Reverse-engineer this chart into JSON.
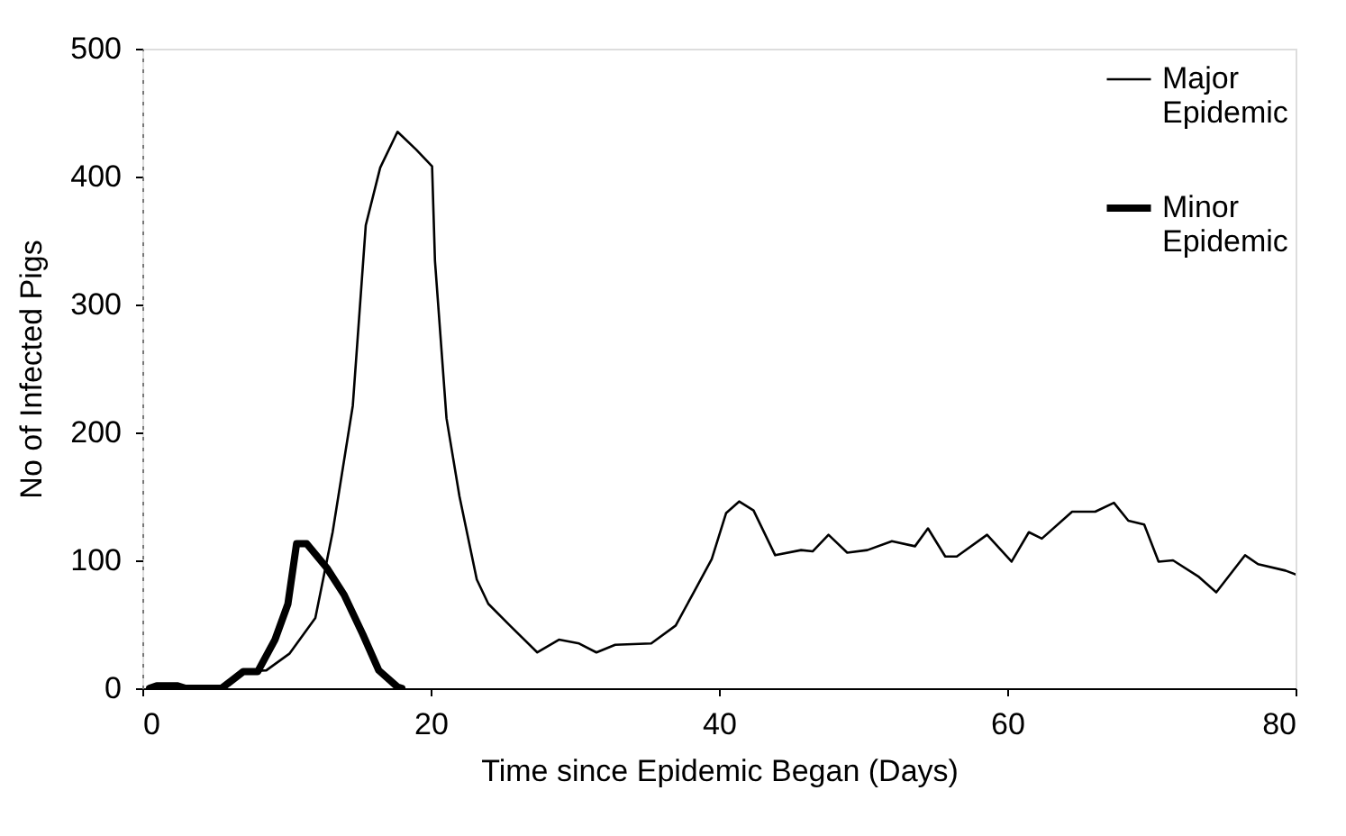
{
  "chart_data": {
    "type": "line",
    "xlabel": "Time since Epidemic Began (Days)",
    "ylabel": "No of Infected Pigs",
    "xlim": [
      0,
      80
    ],
    "xticks": [
      0,
      20,
      40,
      60,
      80
    ],
    "ylim": [
      0,
      500
    ],
    "yticks": [
      0,
      100,
      200,
      300,
      400,
      500
    ],
    "grid": false,
    "legend": "top right",
    "marker": "none",
    "line_style": "solid",
    "series": [
      {
        "name": "Major Epidemic",
        "color": "#000000",
        "x": [
          0.5,
          5.5,
          7,
          8.6,
          10.2,
          12,
          13.2,
          14.6,
          15.5,
          16.5,
          17.7,
          19,
          20.1,
          20.3,
          21.1,
          22,
          23.2,
          24,
          25.5,
          27.4,
          28.9,
          30.3,
          31.5,
          32.8,
          35.3,
          37,
          38.3,
          39.5,
          40.5,
          41.4,
          42.4,
          43.9,
          45.7,
          46.5,
          47.6,
          48.9,
          50.3,
          52,
          53.6,
          54.5,
          55.7,
          56.5,
          58.6,
          60.3,
          61.5,
          62.4,
          64.5,
          66.1,
          67.4,
          68.4,
          69.5,
          70.5,
          71.5,
          73.3,
          74.5,
          76.5,
          77.4,
          79.3,
          80
        ],
        "values": [
          0,
          0,
          13,
          14,
          27,
          55,
          122,
          221,
          362,
          407,
          435,
          421,
          408,
          334,
          211,
          150,
          85,
          66,
          49,
          28,
          38,
          35,
          28,
          34,
          35,
          49,
          76,
          101,
          137,
          146,
          139,
          104,
          108,
          107,
          120,
          106,
          108,
          115,
          111,
          125,
          103,
          103,
          120,
          99,
          122,
          117,
          138,
          138,
          145,
          131,
          128,
          99,
          100,
          87,
          75,
          104,
          97,
          92,
          89
        ]
      },
      {
        "name": "Minor Epidemic",
        "color": "#000000",
        "x": [
          0.5,
          1,
          2.4,
          3,
          5.5,
          7,
          8,
          9.2,
          10.1,
          10.7,
          11.4,
          12.8,
          14,
          15.3,
          16.4,
          17.7,
          18
        ],
        "values": [
          0,
          2,
          2,
          0,
          0,
          13,
          13,
          38,
          66,
          113,
          113,
          94,
          73,
          42,
          14,
          1,
          0
        ]
      }
    ]
  }
}
